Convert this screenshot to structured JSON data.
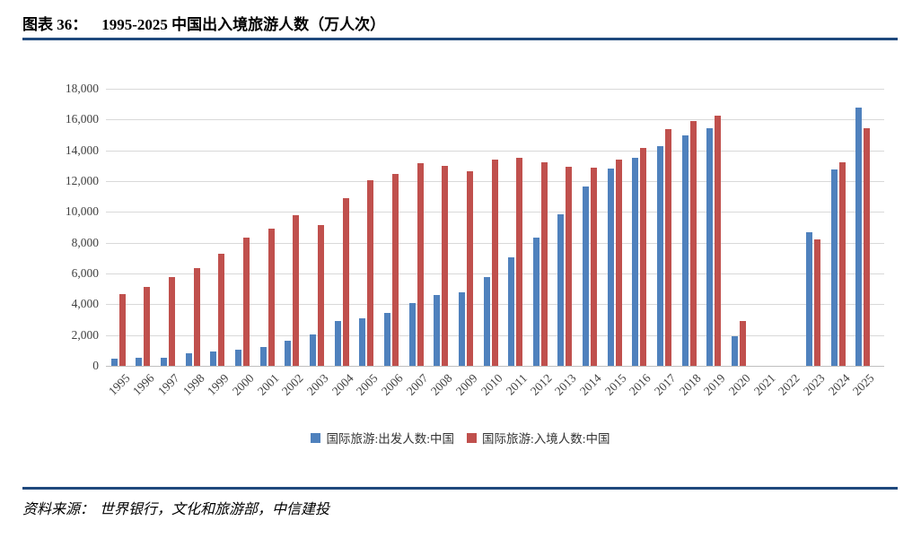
{
  "figure": {
    "label": "图表 36：",
    "title": "1995-2025 中国出入境旅游人数（万人次）",
    "source_label": "资料来源：",
    "source": "世界银行，文化和旅游部，中信建投"
  },
  "colors": {
    "outbound_blue": "#4F81BD",
    "inbound_red": "#C0504D",
    "rule_navy": "#1F497D",
    "gridline_gray": "#D9D9D9",
    "axis_baseline_gray": "#BFBFBF",
    "axis_text_gray": "#404040"
  },
  "chart_data": {
    "type": "bar",
    "title": "1995-2025 中国出入境旅游人数（万人次）",
    "xlabel": "",
    "ylabel": "",
    "unit": "万人次",
    "categories": [
      1995,
      1996,
      1997,
      1998,
      1999,
      2000,
      2001,
      2002,
      2003,
      2004,
      2005,
      2006,
      2007,
      2008,
      2009,
      2010,
      2011,
      2012,
      2013,
      2014,
      2015,
      2016,
      2017,
      2018,
      2019,
      2020,
      2021,
      2022,
      2023,
      2024,
      2025
    ],
    "series": [
      {
        "name": "国际旅游:出发人数:中国",
        "color": "#4F81BD",
        "values": [
          450,
          510,
          530,
          840,
          920,
          1050,
          1210,
          1660,
          2020,
          2890,
          3100,
          3450,
          4100,
          4580,
          4770,
          5740,
          7030,
          8320,
          9820,
          11660,
          12790,
          13510,
          14270,
          14970,
          15460,
          1900,
          null,
          null,
          8700,
          12750,
          16800
        ]
      },
      {
        "name": "国际旅游:入境人数:中国",
        "color": "#C0504D",
        "values": [
          4640,
          5110,
          5760,
          6350,
          7280,
          8340,
          8900,
          9790,
          9170,
          10900,
          12030,
          12490,
          13190,
          13000,
          12650,
          13380,
          13540,
          13240,
          12910,
          12850,
          13380,
          14150,
          15350,
          15880,
          16250,
          2900,
          null,
          null,
          8200,
          13200,
          15450
        ]
      }
    ],
    "ylim": [
      0,
      18000
    ],
    "ytick_step": 2000,
    "ytick_labels": [
      "0",
      "2,000",
      "4,000",
      "6,000",
      "8,000",
      "10,000",
      "12,000",
      "14,000",
      "16,000",
      "18,000"
    ],
    "grid": true,
    "legend_position": "bottom",
    "notes": "2021 与 2022 年无数据柱"
  }
}
